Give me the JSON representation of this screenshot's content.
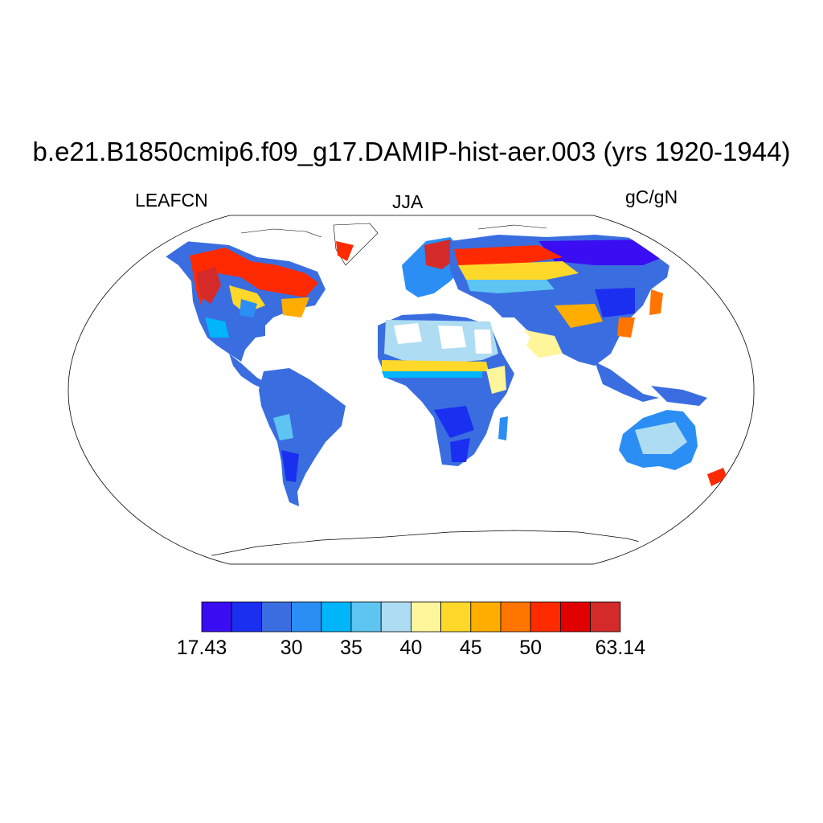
{
  "header": {
    "title": "b.e21.B1850cmip6.f09_g17.DAMIP-hist-aer.003 (yrs 1920-1944)",
    "variable": "LEAFCN",
    "season": "JJA",
    "units": "gC/gN"
  },
  "colorbar": {
    "colors": [
      "#3a0df2",
      "#1b2ff0",
      "#3a6ee0",
      "#2a8ef5",
      "#00b5fa",
      "#5ec4f2",
      "#aedcf2",
      "#fff59a",
      "#ffd82a",
      "#ffae00",
      "#ff7500",
      "#ff2a00",
      "#e00000",
      "#d42a2a"
    ],
    "labels": [
      "17.43",
      "30",
      "35",
      "40",
      "45",
      "50",
      "63.14"
    ],
    "label_positions": [
      0,
      3,
      5,
      7,
      9,
      11,
      14
    ]
  }
}
